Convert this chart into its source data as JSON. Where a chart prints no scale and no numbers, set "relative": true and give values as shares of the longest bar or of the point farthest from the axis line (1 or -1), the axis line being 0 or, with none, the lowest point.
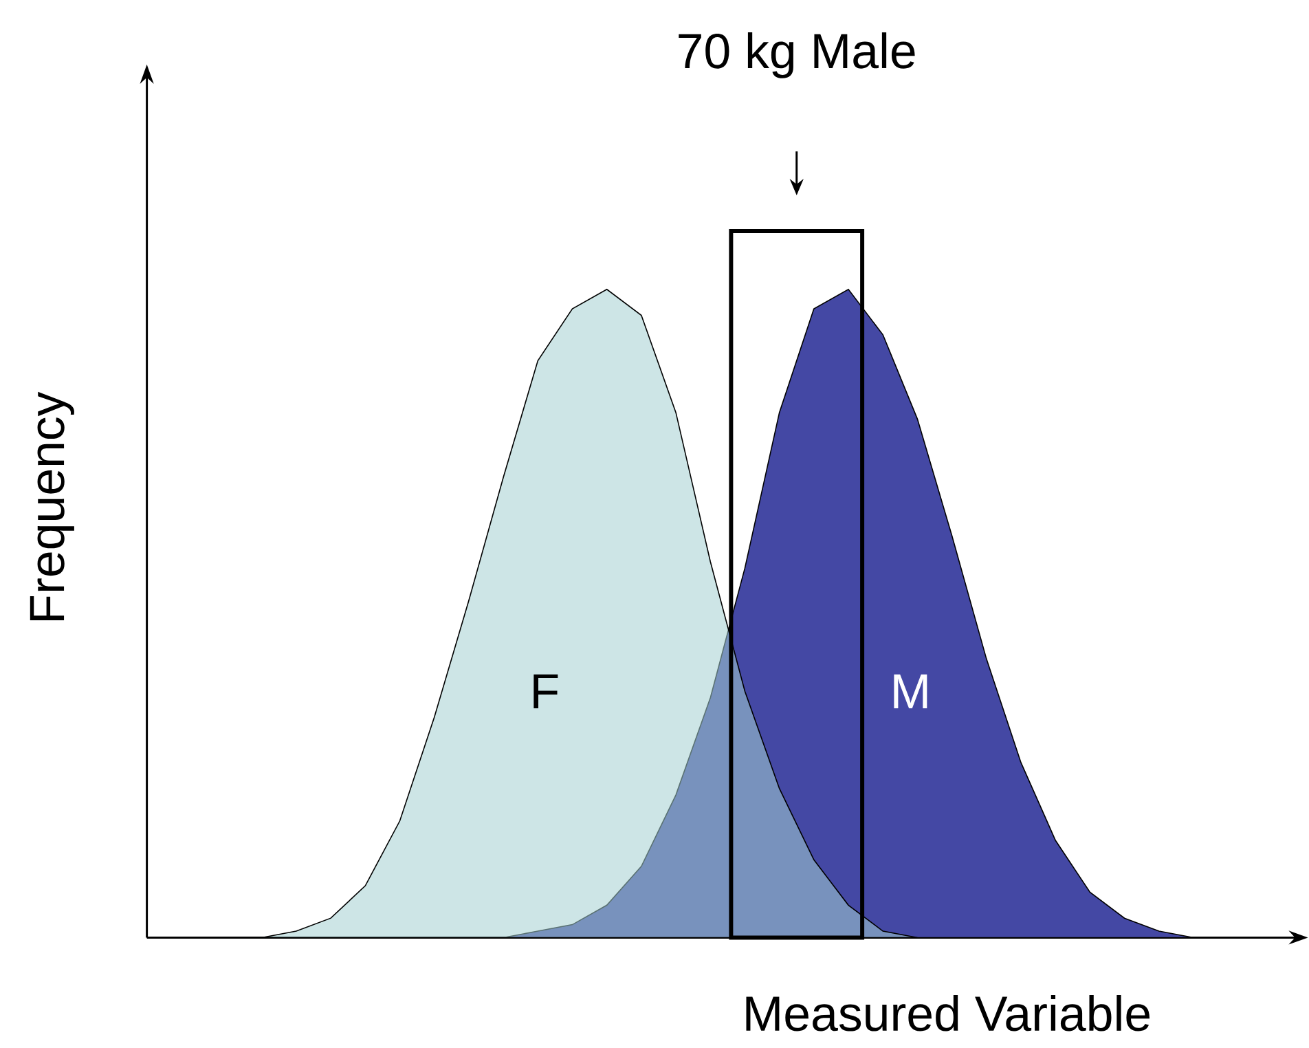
{
  "chart_data": {
    "type": "area",
    "relative": true,
    "xlabel": "Measured Variable",
    "ylabel": "Frequency",
    "tick_labels": false,
    "categories": [
      null,
      null,
      null,
      null,
      null,
      null,
      null,
      null,
      null,
      null,
      null,
      null,
      null,
      null,
      null,
      null,
      null,
      null,
      null,
      null,
      null,
      null,
      null,
      null,
      null,
      null,
      null,
      null
    ],
    "series": [
      {
        "name": "F",
        "color": "#cde5e6",
        "values": [
          0,
          0.01,
          0.03,
          0.08,
          0.18,
          0.34,
          0.52,
          0.71,
          0.89,
          0.97,
          1.0,
          0.96,
          0.81,
          0.58,
          0.38,
          0.23,
          0.12,
          0.05,
          0.01,
          0,
          null,
          null,
          null,
          null,
          null,
          null,
          null,
          null
        ]
      },
      {
        "name": "M",
        "color": "#4448a4",
        "values": [
          null,
          null,
          null,
          null,
          null,
          null,
          null,
          0,
          0.01,
          0.02,
          0.05,
          0.11,
          0.22,
          0.37,
          0.57,
          0.81,
          0.97,
          1.0,
          0.93,
          0.8,
          0.62,
          0.43,
          0.27,
          0.15,
          0.07,
          0.03,
          0.01,
          0
        ]
      }
    ],
    "annotations": [
      "70 kg Male"
    ]
  }
}
